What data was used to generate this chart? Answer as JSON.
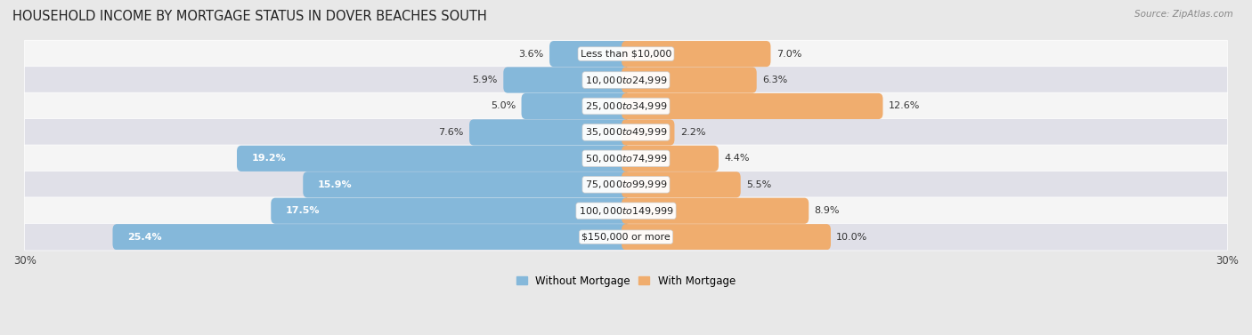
{
  "title": "HOUSEHOLD INCOME BY MORTGAGE STATUS IN DOVER BEACHES SOUTH",
  "source": "Source: ZipAtlas.com",
  "categories": [
    "Less than $10,000",
    "$10,000 to $24,999",
    "$25,000 to $34,999",
    "$35,000 to $49,999",
    "$50,000 to $74,999",
    "$75,000 to $99,999",
    "$100,000 to $149,999",
    "$150,000 or more"
  ],
  "without_mortgage": [
    3.6,
    5.9,
    5.0,
    7.6,
    19.2,
    15.9,
    17.5,
    25.4
  ],
  "with_mortgage": [
    7.0,
    6.3,
    12.6,
    2.2,
    4.4,
    5.5,
    8.9,
    10.0
  ],
  "without_mortgage_color": "#85b8da",
  "with_mortgage_color": "#f0ad6e",
  "background_color": "#e8e8e8",
  "row_light_color": "#f5f5f5",
  "row_dark_color": "#e0e0e8",
  "xlim": [
    -30.0,
    30.0
  ],
  "title_fontsize": 10.5,
  "label_fontsize": 8.0,
  "tick_fontsize": 8.5,
  "legend_fontsize": 8.5,
  "inside_label_threshold": 14.0
}
